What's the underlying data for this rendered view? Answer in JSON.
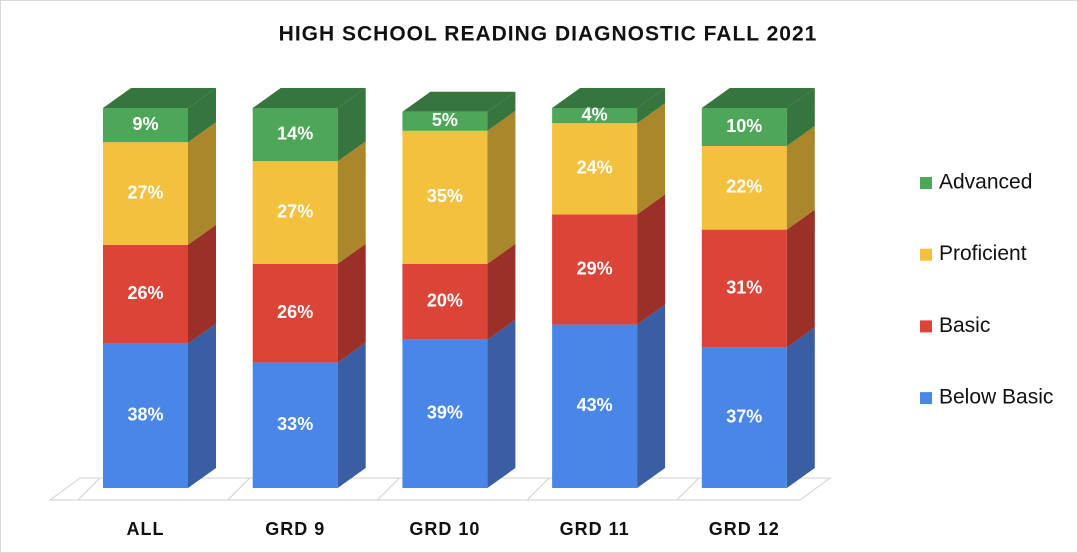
{
  "chart_data": {
    "type": "stacked-bar-3d",
    "title": "HIGH SCHOOL READING DIAGNOSTIC FALL 2021",
    "categories": [
      "ALL",
      "GRD 9",
      "GRD 10",
      "GRD 11",
      "GRD 12"
    ],
    "series": [
      {
        "name": "Below Basic",
        "color": "#4a86e8",
        "side": "#3a5ea3",
        "values": [
          38,
          33,
          39,
          43,
          37
        ],
        "value_labels": [
          "38%",
          "33%",
          "39%",
          "43%",
          "37%"
        ]
      },
      {
        "name": "Basic",
        "color": "#db4437",
        "side": "#9a3027",
        "values": [
          26,
          26,
          20,
          29,
          31
        ],
        "value_labels": [
          "26%",
          "26%",
          "20%",
          "29%",
          "31%"
        ]
      },
      {
        "name": "Proficient",
        "color": "#f4c13f",
        "side": "#ab872c",
        "values": [
          27,
          27,
          35,
          24,
          22
        ],
        "value_labels": [
          "27%",
          "27%",
          "35%",
          "24%",
          "22%"
        ]
      },
      {
        "name": "Advanced",
        "color": "#4ea759",
        "side": "#37753e",
        "values": [
          9,
          14,
          5,
          4,
          10
        ],
        "value_labels": [
          "9%",
          "14%",
          "5%",
          "4%",
          "10%"
        ]
      }
    ],
    "legend": "right"
  }
}
